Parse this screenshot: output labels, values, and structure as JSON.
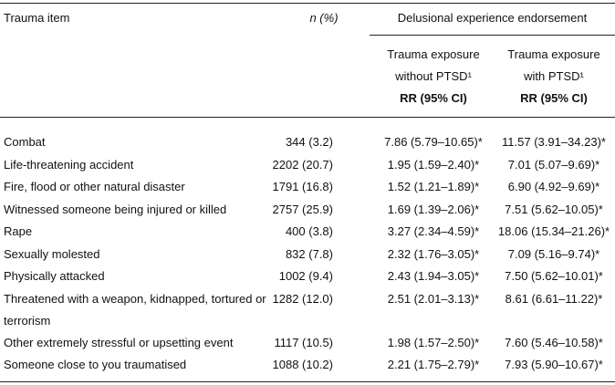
{
  "table": {
    "columns": {
      "item": "Trauma item",
      "n": "n (%)",
      "group": "Delusional experience endorsement",
      "without": [
        "Trauma exposure",
        "without PTSD¹",
        "RR (95% CI)"
      ],
      "with": [
        "Trauma exposure",
        "with PTSD¹",
        "RR (95% CI)"
      ]
    },
    "rows": [
      [
        "Combat",
        "344 (3.2)",
        "7.86 (5.79–10.65)*",
        "11.57 (3.91–34.23)*"
      ],
      [
        "Life-threatening accident",
        "2202 (20.7)",
        "1.95 (1.59–2.40)*",
        "7.01 (5.07–9.69)*"
      ],
      [
        "Fire, flood or other natural disaster",
        "1791 (16.8)",
        "1.52 (1.21–1.89)*",
        "6.90 (4.92–9.69)*"
      ],
      [
        "Witnessed someone being injured or killed",
        "2757 (25.9)",
        "1.69 (1.39–2.06)*",
        "7.51 (5.62–10.05)*"
      ],
      [
        "Rape",
        "400 (3.8)",
        "3.27 (2.34–4.59)*",
        "18.06 (15.34–21.26)*"
      ],
      [
        "Sexually molested",
        "832 (7.8)",
        "2.32 (1.76–3.05)*",
        "7.09 (5.16–9.74)*"
      ],
      [
        "Physically attacked",
        "1002 (9.4)",
        "2.43 (1.94–3.05)*",
        "7.50 (5.62–10.01)*"
      ],
      [
        "Threatened with a weapon, kidnapped, tortured or terrorism",
        "1282 (12.0)",
        "2.51 (2.01–3.13)*",
        "8.61 (6.61–11.22)*"
      ],
      [
        "Other extremely stressful or upsetting event",
        "1117 (10.5)",
        "1.98 (1.57–2.50)*",
        "7.60 (5.46–10.58)*"
      ],
      [
        "Someone close to you traumatised",
        "1088 (10.2)",
        "2.21 (1.75–2.79)*",
        "7.93 (5.90–10.67)*"
      ]
    ]
  }
}
